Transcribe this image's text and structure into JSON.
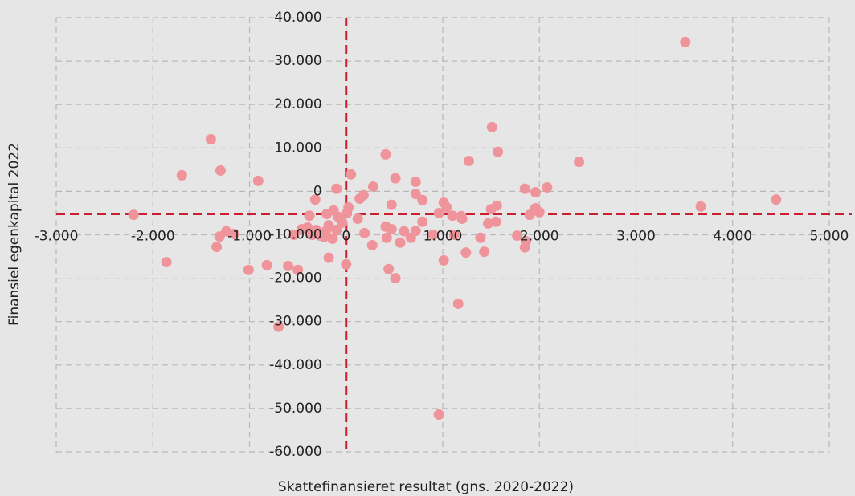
{
  "chart_data": {
    "type": "scatter",
    "x_label": "Skattefinansieret resultat (gns. 2020-2022)",
    "y_label": "Finansiel egenkapital 2022",
    "color": "#f0949c",
    "reference_color": "#c8202f",
    "reference_lines": {
      "x": 0,
      "y": -5200
    },
    "grid": true,
    "xlim": [
      -3000,
      5000
    ],
    "ylim": [
      -60000,
      40000
    ],
    "xticks": [
      {
        "value": -3000,
        "label": "-3.000"
      },
      {
        "value": -2000,
        "label": "-2.000"
      },
      {
        "value": -1000,
        "label": "-1.000"
      },
      0,
      {
        "value": 1000,
        "label": "1.000"
      },
      {
        "value": 2000,
        "label": "2.000"
      },
      {
        "value": 3000,
        "label": "3.000"
      },
      {
        "value": 4000,
        "label": "4.000"
      },
      {
        "value": 5000,
        "label": "5.000"
      }
    ],
    "yticks": [
      {
        "value": -60000,
        "label": "-60.000"
      },
      {
        "value": -50000,
        "label": "-50.000"
      },
      {
        "value": -40000,
        "label": "-40.000"
      },
      {
        "value": -30000,
        "label": "-30.000"
      },
      {
        "value": -20000,
        "label": "-20.000"
      },
      {
        "value": -10000,
        "label": "-10.000"
      },
      0,
      {
        "value": 10000,
        "label": "10.000"
      },
      {
        "value": 20000,
        "label": "20.000"
      },
      {
        "value": 30000,
        "label": "30.000"
      },
      {
        "value": 40000,
        "label": "40.000"
      }
    ],
    "x": [
      3510,
      3670,
      4450,
      2410,
      1510,
      1570,
      1270,
      2080,
      1850,
      1960,
      1560,
      1500,
      1960,
      2000,
      1900,
      1550,
      1470,
      1770,
      1860,
      1850,
      1390,
      1430,
      1240,
      1120,
      1200,
      1100,
      960,
      1010,
      1040,
      900,
      790,
      790,
      720,
      720,
      720,
      670,
      600,
      470,
      410,
      510,
      410,
      470,
      420,
      560,
      440,
      510,
      1160,
      960,
      1010,
      280,
      180,
      140,
      190,
      270,
      50,
      120,
      25,
      8,
      -40,
      -80,
      0,
      -100,
      -130,
      -200,
      -180,
      -100,
      -210,
      -140,
      -230,
      -310,
      -270,
      -180,
      -350,
      -380,
      -400,
      -460,
      -540,
      -320,
      -500,
      -600,
      -820,
      -1010,
      -700,
      -910,
      -1300,
      -1400,
      -1700,
      -2200,
      -1860,
      -1240,
      -1310,
      -1160,
      -1340,
      1190
    ],
    "y": [
      34400,
      -3500,
      -1900,
      6800,
      14800,
      9100,
      7000,
      900,
      600,
      -200,
      -3300,
      -4100,
      -3900,
      -4800,
      -5400,
      -7000,
      -7400,
      -10200,
      -11500,
      -12900,
      -10700,
      -13900,
      -14100,
      -10000,
      -6300,
      -5600,
      -5000,
      -2600,
      -3700,
      -10000,
      -7000,
      -2000,
      2200,
      -600,
      -9100,
      -10700,
      -9200,
      -8700,
      -8100,
      3000,
      8500,
      -3100,
      -10700,
      -11800,
      -17900,
      -20000,
      -25900,
      -51400,
      -15900,
      1100,
      -900,
      -1700,
      -9600,
      -12400,
      3900,
      -6300,
      -3700,
      -5000,
      -7200,
      -5900,
      -16800,
      600,
      -4400,
      -5200,
      -7800,
      -8900,
      -9200,
      -10900,
      -10500,
      -8900,
      -10200,
      -15300,
      -10000,
      -5600,
      -8300,
      -8700,
      -10000,
      -1900,
      -18100,
      -17200,
      -17000,
      -18100,
      -31200,
      2400,
      4800,
      12000,
      3700,
      -5400,
      -16300,
      -9200,
      -10400,
      -9800,
      -12800,
      -5700
    ]
  }
}
